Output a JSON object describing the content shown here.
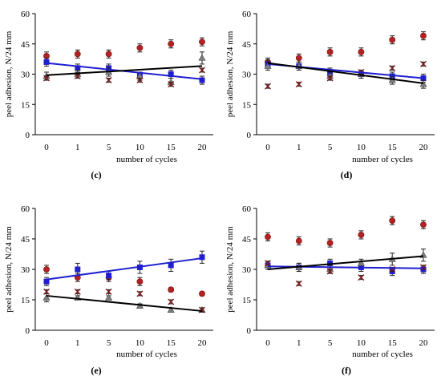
{
  "chart_data": [
    {
      "panel_label": "(c)",
      "type": "scatter",
      "categories": [
        "0",
        "1",
        "5",
        "10",
        "15",
        "20"
      ],
      "xlabel": "number of cycles",
      "ylabel": "peel adhesion, N/24 mm",
      "ylim": [
        0,
        60
      ],
      "yticks": [
        "0",
        "15",
        "30",
        "45",
        "60"
      ],
      "grid": false,
      "series": [
        {
          "marker": "circle",
          "color": "#b22222",
          "values": [
            39,
            40,
            40,
            43,
            45,
            46
          ],
          "errors": [
            2,
            2,
            2,
            2,
            2,
            2
          ]
        },
        {
          "marker": "square",
          "color": "#1f1fd0",
          "values": [
            36,
            33,
            33,
            29,
            30,
            27
          ],
          "errors": [
            2,
            2,
            2,
            2,
            2,
            2
          ]
        },
        {
          "marker": "triangle",
          "color": "#7f7f7f",
          "values": [
            29,
            30,
            31,
            29,
            26,
            38
          ],
          "errors": [
            2,
            2,
            2,
            2,
            2,
            3
          ]
        },
        {
          "marker": "x",
          "color": "#7b1e1e",
          "values": [
            28,
            29,
            27,
            27,
            25,
            32
          ],
          "errors": [
            1,
            1,
            1,
            1,
            1,
            1
          ]
        }
      ],
      "trendlines": [
        {
          "color": "#1f1fd0",
          "from": 35.5,
          "to": 27.5
        },
        {
          "color": "#000000",
          "from": 29.5,
          "to": 34.0
        }
      ]
    },
    {
      "panel_label": "(d)",
      "type": "scatter",
      "categories": [
        "0",
        "1",
        "5",
        "10",
        "15",
        "20"
      ],
      "xlabel": "number of cycles",
      "ylabel": "peel adhesion, N/24 mm",
      "ylim": [
        0,
        60
      ],
      "yticks": [
        "0",
        "15",
        "30",
        "45",
        "60"
      ],
      "grid": false,
      "series": [
        {
          "marker": "circle",
          "color": "#b22222",
          "values": [
            36,
            38,
            41,
            41,
            47,
            49
          ],
          "errors": [
            2,
            2,
            2,
            2,
            2,
            2
          ]
        },
        {
          "marker": "square",
          "color": "#1f1fd0",
          "values": [
            35,
            34,
            31,
            30,
            29,
            28
          ],
          "errors": [
            2,
            2,
            2,
            2,
            2,
            2
          ]
        },
        {
          "marker": "triangle",
          "color": "#7f7f7f",
          "values": [
            34,
            34,
            29,
            30,
            27,
            25
          ],
          "errors": [
            2,
            2,
            2,
            2,
            2,
            2
          ]
        },
        {
          "marker": "x",
          "color": "#7b1e1e",
          "values": [
            24,
            25,
            28,
            31,
            33,
            35
          ],
          "errors": [
            1,
            1,
            1,
            1,
            1,
            1
          ]
        }
      ],
      "trendlines": [
        {
          "color": "#1f1fd0",
          "from": 35.0,
          "to": 28.0
        },
        {
          "color": "#000000",
          "from": 35.5,
          "to": 25.5
        }
      ]
    },
    {
      "panel_label": "(e)",
      "type": "scatter",
      "categories": [
        "0",
        "1",
        "5",
        "10",
        "15",
        "20"
      ],
      "xlabel": "number of cycles",
      "ylabel": "peel adhesion, N/24 mm",
      "ylim": [
        0,
        60
      ],
      "yticks": [
        "0",
        "15",
        "30",
        "45",
        "60"
      ],
      "grid": false,
      "series": [
        {
          "marker": "circle",
          "color": "#b22222",
          "values": [
            30,
            26,
            26,
            24,
            20,
            18
          ],
          "errors": [
            2,
            2,
            2,
            2,
            1,
            1
          ]
        },
        {
          "marker": "square",
          "color": "#1f1fd0",
          "values": [
            24,
            30,
            27,
            31,
            32,
            36
          ],
          "errors": [
            2,
            3,
            2,
            3,
            3,
            3
          ]
        },
        {
          "marker": "triangle",
          "color": "#7f7f7f",
          "values": [
            16,
            16,
            16,
            12,
            10,
            10
          ],
          "errors": [
            2,
            1,
            1,
            1,
            1,
            1
          ]
        },
        {
          "marker": "x",
          "color": "#7b1e1e",
          "values": [
            19,
            19,
            19,
            18,
            14,
            10
          ],
          "errors": [
            1,
            1,
            1,
            1,
            1,
            1
          ]
        }
      ],
      "trendlines": [
        {
          "color": "#1f1fd0",
          "from": 25.0,
          "to": 35.5
        },
        {
          "color": "#000000",
          "from": 17.0,
          "to": 9.5
        }
      ]
    },
    {
      "panel_label": "(f)",
      "type": "scatter",
      "categories": [
        "0",
        "1",
        "5",
        "10",
        "15",
        "20"
      ],
      "xlabel": "number of cycles",
      "ylabel": "peel adhesion, N/24 mm",
      "ylim": [
        0,
        60
      ],
      "yticks": [
        "0",
        "15",
        "30",
        "45",
        "60"
      ],
      "grid": false,
      "series": [
        {
          "marker": "circle",
          "color": "#b22222",
          "values": [
            46,
            44,
            43,
            47,
            54,
            52
          ],
          "errors": [
            2,
            2,
            2,
            2,
            2,
            2
          ]
        },
        {
          "marker": "square",
          "color": "#1f1fd0",
          "values": [
            32,
            31,
            33,
            31,
            29,
            30
          ],
          "errors": [
            2,
            2,
            2,
            2,
            2,
            2
          ]
        },
        {
          "marker": "triangle",
          "color": "#7f7f7f",
          "values": [
            32,
            31,
            30,
            33,
            35,
            37
          ],
          "errors": [
            2,
            2,
            2,
            2,
            3,
            3
          ]
        },
        {
          "marker": "x",
          "color": "#7b1e1e",
          "values": [
            33,
            23,
            29,
            26,
            30,
            31
          ],
          "errors": [
            1,
            1,
            1,
            1,
            1,
            1
          ]
        }
      ],
      "trendlines": [
        {
          "color": "#1f1fd0",
          "from": 31.5,
          "to": 30.5
        },
        {
          "color": "#000000",
          "from": 30.0,
          "to": 36.5
        }
      ]
    }
  ]
}
